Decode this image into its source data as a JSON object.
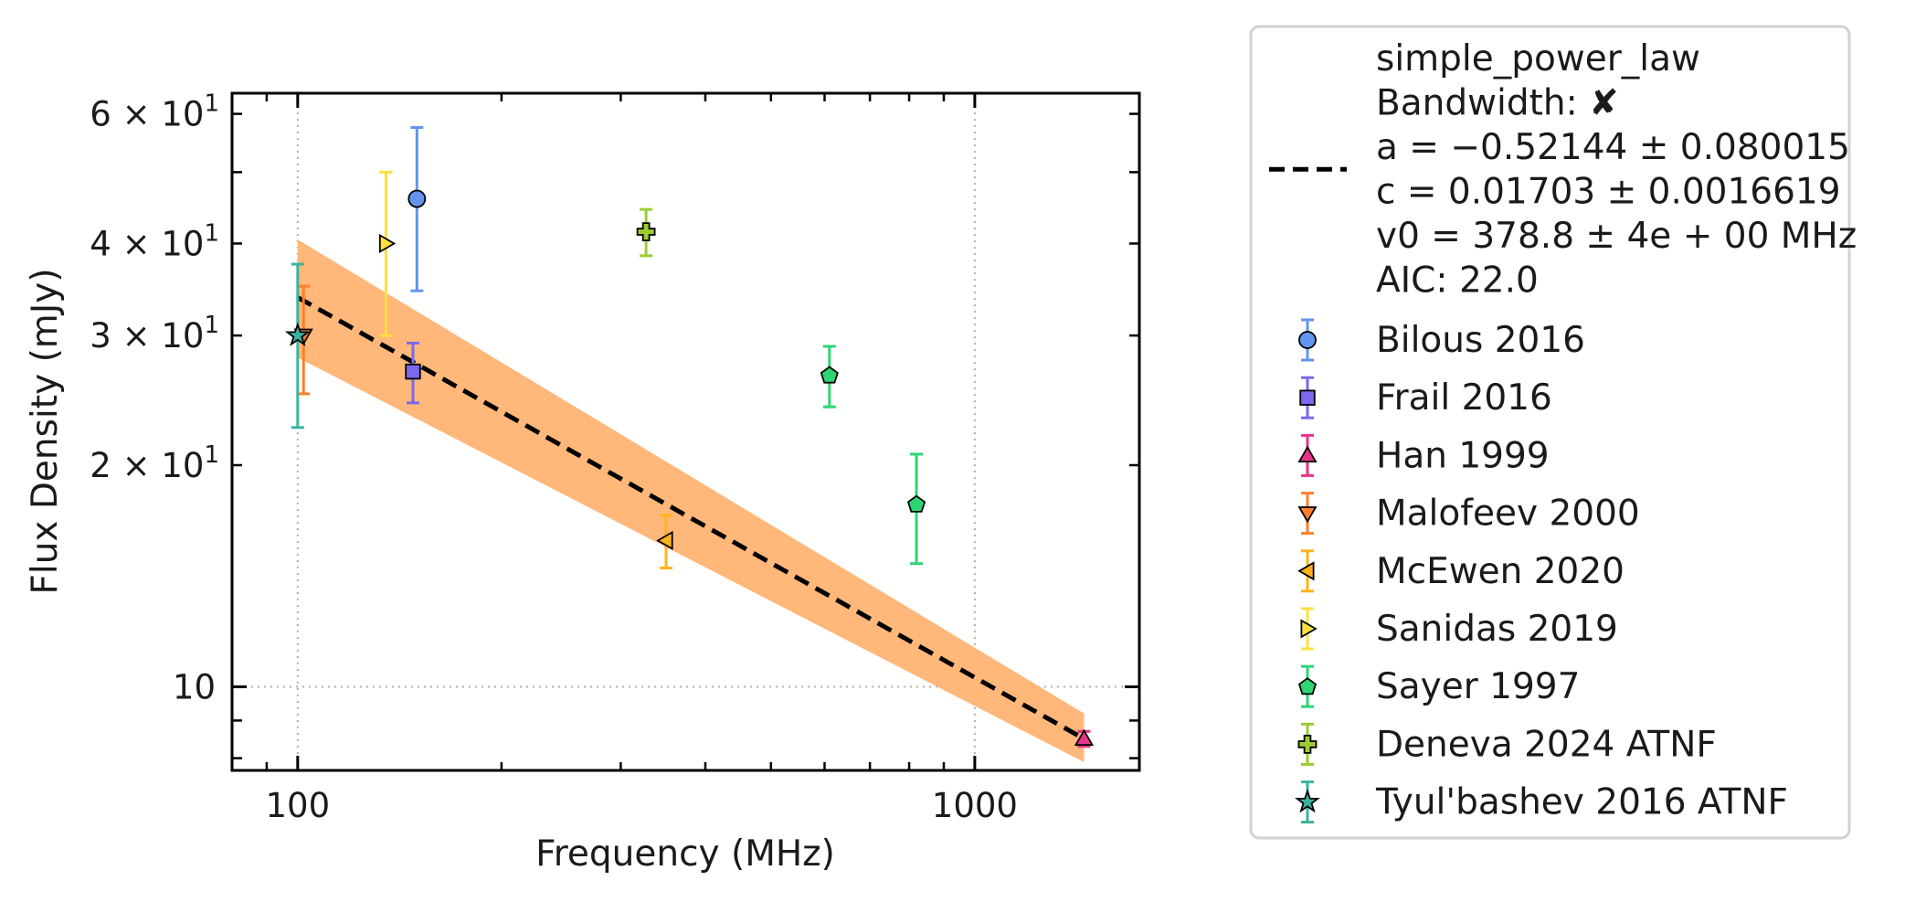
{
  "chart_data": {
    "type": "scatter",
    "x_scale": "log",
    "y_scale": "log",
    "xlabel": "Frequency (MHz)",
    "ylabel": "Flux Density (mJy)",
    "xlim": [
      80,
      1750
    ],
    "ylim": [
      7.7,
      64
    ],
    "grid": "dotted, major ticks only",
    "legend_position": "outside-right",
    "x_ticks": [
      {
        "value": 100,
        "label": "100"
      },
      {
        "value": 1000,
        "label": "1000"
      }
    ],
    "y_ticks": [
      {
        "value": 10,
        "label": "10",
        "base": "",
        "exp": ""
      },
      {
        "value": 20,
        "label": "",
        "base": "2 × 10",
        "exp": "1"
      },
      {
        "value": 30,
        "label": "",
        "base": "3 × 10",
        "exp": "1"
      },
      {
        "value": 40,
        "label": "",
        "base": "4 × 10",
        "exp": "1"
      },
      {
        "value": 60,
        "label": "",
        "base": "6 × 10",
        "exp": "1"
      }
    ],
    "fit": {
      "lines": [
        "simple_power_law",
        "Bandwidth: ✘",
        "a = −0.52144 ± 0.080015",
        "c = 0.01703 ± 0.0016619",
        "v0 = 378.8 ± 4e + 00 MHz",
        "AIC: 22.0"
      ],
      "line_color": "#000000",
      "band_color": "#ffb77a",
      "line": [
        [
          100,
          33.8
        ],
        [
          1450,
          8.5
        ]
      ],
      "band_upper": [
        [
          100,
          40.5
        ],
        [
          1450,
          9.2
        ]
      ],
      "band_lower": [
        [
          100,
          28.0
        ],
        [
          1450,
          7.9
        ]
      ]
    },
    "series": [
      {
        "name": "Bilous 2016",
        "marker": "circle",
        "color": "#6495ed",
        "points": [
          {
            "x": 150,
            "y": 46,
            "yerr_low": 34.5,
            "yerr_high": 57.5
          }
        ]
      },
      {
        "name": "Frail 2016",
        "marker": "square",
        "color": "#7b68ee",
        "points": [
          {
            "x": 148,
            "y": 26.8,
            "yerr_low": 24.3,
            "yerr_high": 29.3
          }
        ]
      },
      {
        "name": "Han 1999",
        "marker": "triangle-up",
        "color": "#e8338b",
        "points": [
          {
            "x": 1450,
            "y": 8.5,
            "yerr_low": 8.3,
            "yerr_high": 8.7
          }
        ]
      },
      {
        "name": "Malofeev 2000",
        "marker": "triangle-down",
        "color": "#ff7f2a",
        "points": [
          {
            "x": 102,
            "y": 30,
            "yerr_low": 25,
            "yerr_high": 35
          }
        ]
      },
      {
        "name": "McEwen 2020",
        "marker": "triangle-left",
        "color": "#ffb31a",
        "points": [
          {
            "x": 350,
            "y": 15.8,
            "yerr_low": 14.5,
            "yerr_high": 17.1
          }
        ]
      },
      {
        "name": "Sanidas 2019",
        "marker": "triangle-right",
        "color": "#ffe040",
        "points": [
          {
            "x": 135,
            "y": 40,
            "yerr_low": 30,
            "yerr_high": 50
          }
        ]
      },
      {
        "name": "Sayer 1997",
        "marker": "pentagon",
        "color": "#2ed573",
        "points": [
          {
            "x": 610,
            "y": 26.5,
            "yerr_low": 24,
            "yerr_high": 29
          },
          {
            "x": 820,
            "y": 17.7,
            "yerr_low": 14.7,
            "yerr_high": 20.7
          }
        ]
      },
      {
        "name": "Deneva 2024 ATNF",
        "marker": "plus",
        "color": "#9acd32",
        "points": [
          {
            "x": 327,
            "y": 41.5,
            "yerr_low": 38.5,
            "yerr_high": 44.5
          }
        ]
      },
      {
        "name": "Tyul'bashev 2016 ATNF",
        "marker": "star",
        "color": "#3cb3a0",
        "points": [
          {
            "x": 100,
            "y": 30,
            "yerr_low": 22.5,
            "yerr_high": 37.5
          }
        ]
      }
    ]
  }
}
